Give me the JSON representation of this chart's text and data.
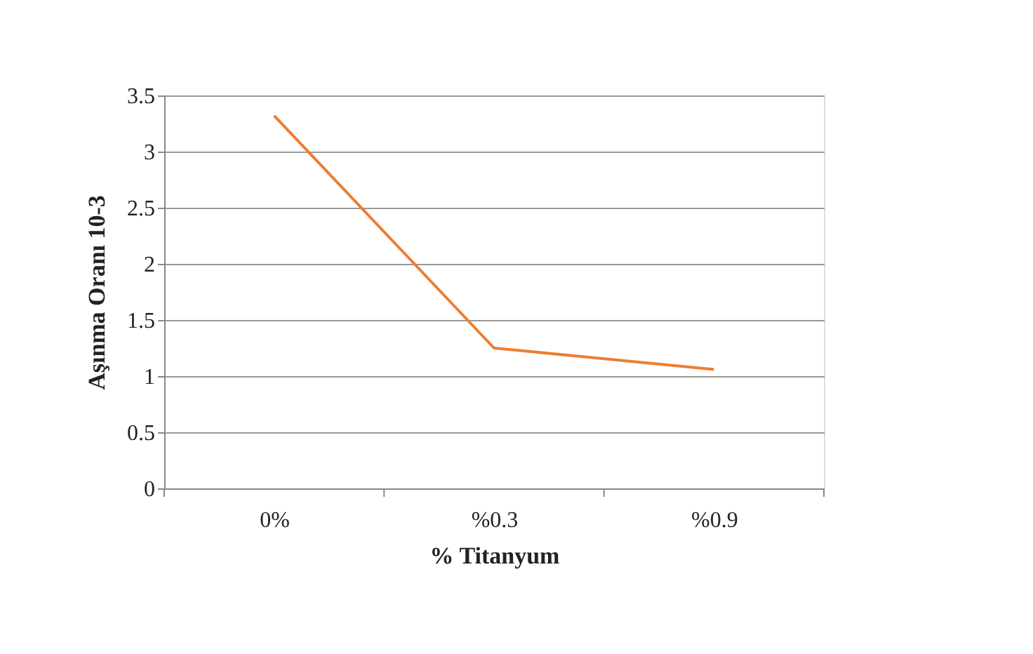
{
  "chart_data": {
    "type": "line",
    "xlabel": "% Titanyum",
    "ylabel": "Aşınma Oranı 10-3",
    "categories": [
      "0%",
      "%0.3",
      "%0.9"
    ],
    "series": [
      {
        "color": "#ed7d31",
        "values": [
          3.32,
          1.25,
          1.06
        ]
      }
    ],
    "ylim": [
      0,
      3.5
    ],
    "yticks": [
      0,
      0.5,
      1,
      1.5,
      2,
      2.5,
      3,
      3.5
    ],
    "grid": "y",
    "marker": "none"
  }
}
